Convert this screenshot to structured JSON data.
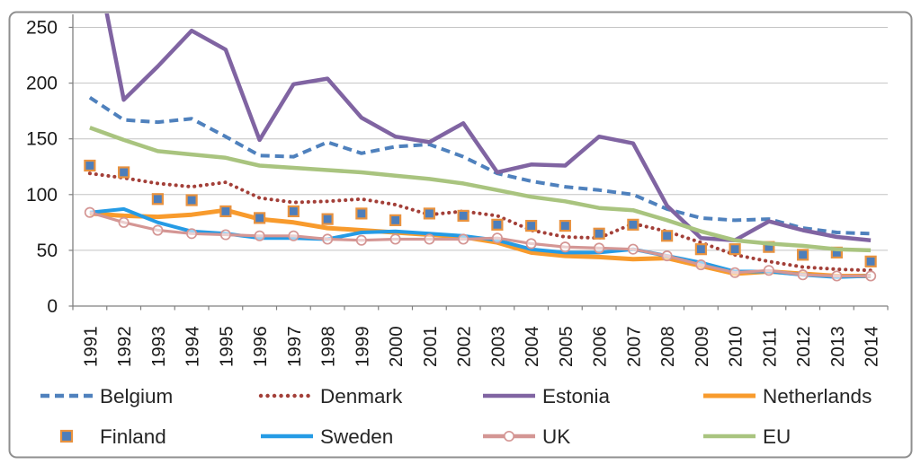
{
  "chart_data": {
    "type": "line",
    "title": "",
    "xlabel": "",
    "ylabel": "",
    "grid": true,
    "legend_position": "bottom",
    "x_categories": [
      "1991",
      "1992",
      "1993",
      "1994",
      "1995",
      "1996",
      "1997",
      "1998",
      "1999",
      "2000",
      "2001",
      "2002",
      "2003",
      "2004",
      "2005",
      "2006",
      "2007",
      "2008",
      "2009",
      "2010",
      "2011",
      "2012",
      "2013",
      "2014"
    ],
    "y_axis": {
      "min": 0,
      "max": 250,
      "tick_interval": 50,
      "tick_labels": [
        "0",
        "50",
        "100",
        "150",
        "200",
        "250"
      ],
      "ticks": [
        0,
        50,
        100,
        150,
        200,
        250
      ]
    },
    "series": [
      {
        "name": "Belgium",
        "color": "#4F81BD",
        "style": "dashed",
        "marker": "none",
        "stroke_width": 4,
        "values": [
          187,
          167,
          165,
          168,
          152,
          135,
          134,
          147,
          137,
          143,
          145,
          134,
          119,
          112,
          107,
          104,
          100,
          87,
          79,
          77,
          78,
          70,
          66,
          65
        ]
      },
      {
        "name": "Denmark",
        "color": "#A33F38",
        "style": "dotted",
        "marker": "none",
        "stroke_width": 4,
        "values": [
          119,
          115,
          110,
          107,
          111,
          97,
          93,
          94,
          96,
          91,
          82,
          85,
          81,
          68,
          62,
          61,
          74,
          67,
          57,
          46,
          40,
          35,
          33,
          32
        ]
      },
      {
        "name": "Estonia",
        "color": "#8064A2",
        "style": "solid",
        "marker": "none",
        "stroke_width": 4.5,
        "values": [
          340,
          185,
          215,
          247,
          230,
          149,
          199,
          204,
          169,
          152,
          147,
          164,
          120,
          127,
          126,
          152,
          146,
          90,
          61,
          59,
          76,
          68,
          62,
          59
        ]
      },
      {
        "name": "Netherlands",
        "color": "#F89B2D",
        "style": "solid",
        "marker": "none",
        "stroke_width": 5,
        "values": [
          83,
          81,
          80,
          82,
          86,
          78,
          75,
          70,
          68,
          66,
          64,
          62,
          57,
          48,
          45,
          44,
          42,
          43,
          36,
          29,
          31,
          29,
          27,
          27
        ]
      },
      {
        "name": "Finland",
        "color": "#4D7EBB",
        "style": "none",
        "marker": "square",
        "marker_border": "#E8923F",
        "stroke_width": 0,
        "values": [
          126,
          120,
          96,
          95,
          85,
          79,
          85,
          78,
          83,
          77,
          83,
          81,
          73,
          72,
          72,
          65,
          73,
          63,
          51,
          51,
          53,
          46,
          48,
          40
        ]
      },
      {
        "name": "Sweden",
        "color": "#259BE5",
        "style": "solid",
        "marker": "none",
        "stroke_width": 4,
        "values": [
          84,
          87,
          75,
          67,
          65,
          61,
          61,
          60,
          66,
          67,
          65,
          63,
          59,
          51,
          48,
          48,
          51,
          45,
          39,
          31,
          31,
          28,
          26,
          27
        ]
      },
      {
        "name": "UK",
        "color": "#D49694",
        "style": "solid",
        "marker": "circle-open",
        "stroke_width": 3.2,
        "values": [
          84,
          75,
          68,
          65,
          64,
          63,
          63,
          60,
          59,
          60,
          60,
          60,
          61,
          56,
          53,
          52,
          51,
          45,
          37,
          30,
          32,
          28,
          27,
          27
        ]
      },
      {
        "name": "EU",
        "color": "#A9C47F",
        "style": "solid",
        "marker": "none",
        "stroke_width": 4.5,
        "values": [
          160,
          149,
          139,
          136,
          133,
          126,
          124,
          122,
          120,
          117,
          114,
          110,
          104,
          98,
          94,
          88,
          86,
          77,
          67,
          59,
          56,
          54,
          51,
          50
        ]
      }
    ],
    "legend_rows": [
      [
        "Belgium",
        "Denmark",
        "Estonia",
        "Netherlands"
      ],
      [
        "Finland",
        "Sweden",
        "UK",
        "EU"
      ]
    ]
  },
  "frame": {
    "border_color": "#8F8F8F",
    "gridline_color": "#C4C4C4",
    "axis_color": "#808080",
    "label_color": "#1A1A1A"
  }
}
